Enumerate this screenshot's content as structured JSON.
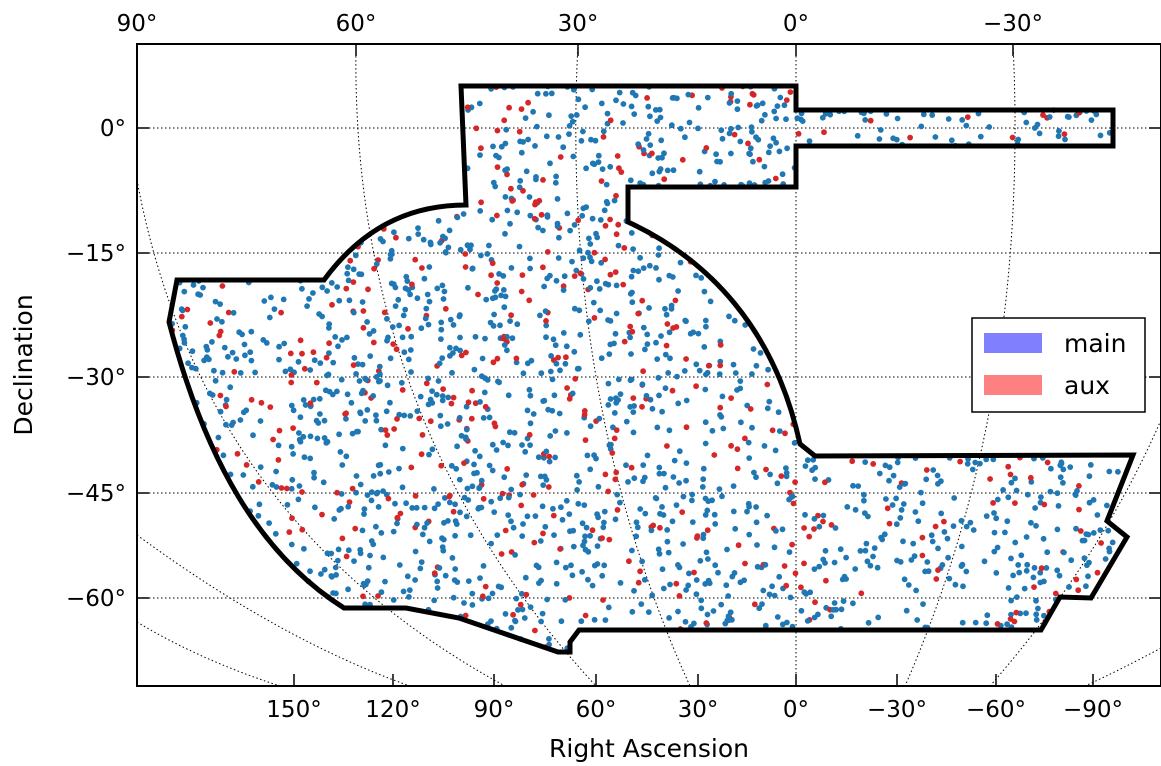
{
  "chart_data": {
    "type": "scatter",
    "title": "",
    "xlabel": "Right Ascension",
    "ylabel": "Declination",
    "projection": "curved sky grid (tangent-plane-like)",
    "grid": "dotted",
    "legend_position": "right",
    "top_ticks": [
      "90°",
      "60°",
      "30°",
      "0°",
      "−30°"
    ],
    "bottom_ticks": [
      "150°",
      "120°",
      "90°",
      "60°",
      "30°",
      "0°",
      "−30°",
      "−60°",
      "−90°"
    ],
    "left_ticks": [
      "0°",
      "−15°",
      "−30°",
      "−45°",
      "−60°"
    ],
    "series": [
      {
        "name": "main",
        "color": "#1f77b4",
        "legend_color": "#8080ff"
      },
      {
        "name": "aux",
        "color": "#d62728",
        "legend_color": "#ff8080"
      }
    ],
    "footprint_color": "#000000",
    "sampling_note": "points are drawn uniformly inside the survey footprint; ~20% aux"
  }
}
